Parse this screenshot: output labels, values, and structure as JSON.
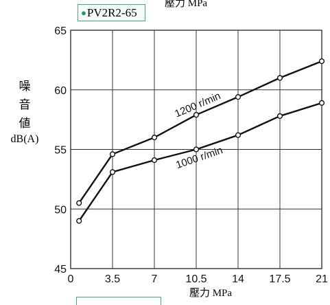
{
  "badge": {
    "text": "PV2R2-65"
  },
  "top_unit": "壓力 MPa",
  "ylabel": {
    "chars": [
      "噪",
      "音",
      "値"
    ],
    "unit": "dB(A)"
  },
  "chart_data": {
    "type": "line",
    "title": "",
    "xlabel": "壓力 MPa",
    "ylabel": "噪音値 dB(A)",
    "xlim": [
      0,
      21
    ],
    "ylim": [
      45,
      65
    ],
    "xticks": [
      0,
      3.5,
      7,
      10.5,
      14,
      17.5,
      21
    ],
    "xtick_labels": [
      "0",
      "3.5",
      "7",
      "10.5",
      "14",
      "17.5",
      "21"
    ],
    "yticks": [
      45,
      50,
      55,
      60,
      65
    ],
    "ytick_labels": [
      "45",
      "50",
      "55",
      "60",
      "65"
    ],
    "grid": true,
    "series": [
      {
        "name": "1200 r/min",
        "x": [
          0.7,
          3.5,
          7,
          10.5,
          14,
          17.5,
          21
        ],
        "y": [
          50.5,
          54.6,
          56.0,
          57.9,
          59.4,
          61.0,
          62.4
        ]
      },
      {
        "name": "1000 r/min",
        "x": [
          0.7,
          3.5,
          7,
          10.5,
          14,
          17.5,
          21
        ],
        "y": [
          49.0,
          53.1,
          54.1,
          55.0,
          56.2,
          57.8,
          58.9
        ]
      }
    ]
  }
}
